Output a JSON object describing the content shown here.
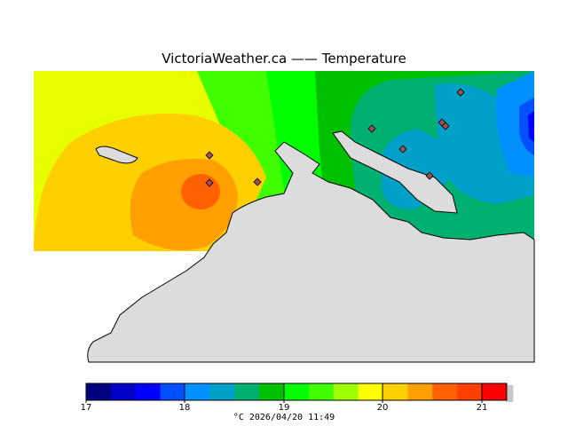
{
  "title": "VictoriaWeather.ca  —— Temperature",
  "colorbar": {
    "ticks": [
      "17",
      "18",
      "19",
      "20",
      "21"
    ],
    "colors": [
      "#000080",
      "#0000c8",
      "#0000ff",
      "#0050ff",
      "#0090ff",
      "#00a0c8",
      "#00b070",
      "#00c000",
      "#00ff00",
      "#40ff00",
      "#a0ff00",
      "#ffff00",
      "#ffd000",
      "#ffa000",
      "#ff6000",
      "#ff4000",
      "#ff0000"
    ],
    "units_and_time": "°C  2026/04/20 11:49"
  },
  "map": {
    "land_color": "#dcdcdc",
    "station_icon": "diamond-icon",
    "station_count": 9
  }
}
